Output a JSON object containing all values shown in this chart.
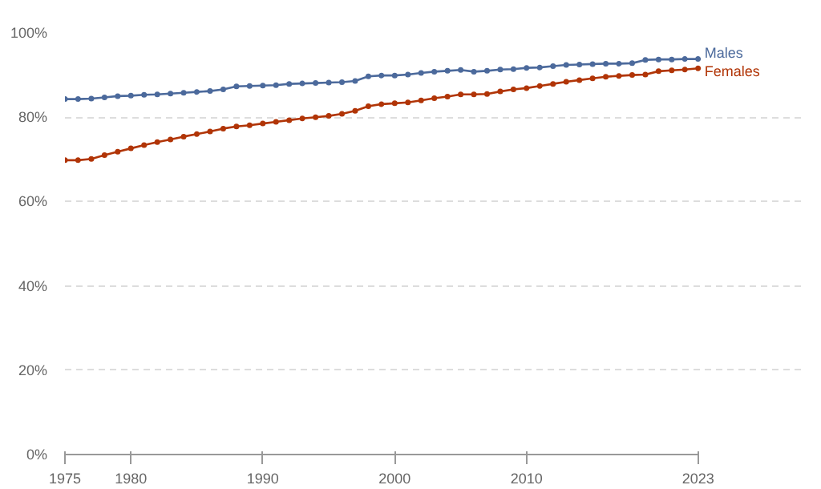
{
  "chart_data": {
    "type": "line",
    "x": [
      1975,
      1976,
      1977,
      1978,
      1979,
      1980,
      1981,
      1982,
      1983,
      1984,
      1985,
      1986,
      1987,
      1988,
      1989,
      1990,
      1991,
      1992,
      1993,
      1994,
      1995,
      1996,
      1997,
      1998,
      1999,
      2000,
      2001,
      2002,
      2003,
      2004,
      2005,
      2006,
      2007,
      2008,
      2009,
      2010,
      2011,
      2012,
      2013,
      2014,
      2015,
      2016,
      2017,
      2018,
      2019,
      2020,
      2021,
      2022,
      2023
    ],
    "series": [
      {
        "name": "Males",
        "color": "#4c6a9c",
        "values": [
          84.3,
          84.3,
          84.4,
          84.7,
          85.0,
          85.1,
          85.3,
          85.4,
          85.6,
          85.8,
          86.0,
          86.2,
          86.6,
          87.3,
          87.4,
          87.5,
          87.6,
          87.9,
          88.0,
          88.1,
          88.2,
          88.3,
          88.6,
          89.7,
          89.9,
          89.9,
          90.1,
          90.5,
          90.8,
          91.0,
          91.2,
          90.8,
          91.0,
          91.3,
          91.4,
          91.7,
          91.8,
          92.1,
          92.4,
          92.5,
          92.6,
          92.7,
          92.7,
          92.8,
          93.6,
          93.7,
          93.7,
          93.8,
          93.8
        ]
      },
      {
        "name": "Females",
        "color": "#b13507",
        "values": [
          69.8,
          69.8,
          70.1,
          71.0,
          71.8,
          72.6,
          73.4,
          74.1,
          74.7,
          75.4,
          76.0,
          76.6,
          77.3,
          77.8,
          78.1,
          78.5,
          78.9,
          79.3,
          79.7,
          80.0,
          80.3,
          80.8,
          81.5,
          82.6,
          83.1,
          83.3,
          83.5,
          84.0,
          84.5,
          84.9,
          85.4,
          85.4,
          85.5,
          86.1,
          86.6,
          86.9,
          87.4,
          87.9,
          88.4,
          88.8,
          89.2,
          89.6,
          89.8,
          90.0,
          90.1,
          90.9,
          91.1,
          91.3,
          91.6
        ]
      }
    ],
    "xlim": [
      1975,
      2023
    ],
    "xticks": [
      1975,
      1980,
      1990,
      2000,
      2010,
      2023
    ],
    "ylim": [
      0,
      100
    ],
    "yticks": [
      {
        "value": 0,
        "label": "0%"
      },
      {
        "value": 20,
        "label": "20%"
      },
      {
        "value": 40,
        "label": "40%"
      },
      {
        "value": 60,
        "label": "60%"
      },
      {
        "value": 80,
        "label": "80%"
      },
      {
        "value": 100,
        "label": "100%"
      }
    ],
    "grid": "y",
    "legend": false,
    "marker": "circle",
    "line_style": "solid"
  }
}
